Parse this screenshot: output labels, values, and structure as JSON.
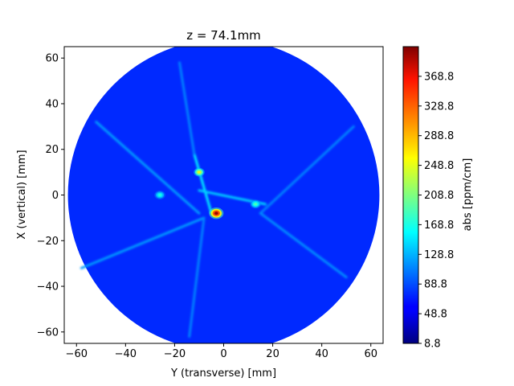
{
  "chart_data": {
    "type": "heatmap",
    "title": "z = 74.1mm",
    "xlabel": "Y (transverse) [mm]",
    "ylabel": "X (vertical) [mm]",
    "xlim": [
      -65,
      65
    ],
    "ylim": [
      -65,
      65
    ],
    "x_ticks": [
      -60,
      -40,
      -20,
      0,
      20,
      40,
      60
    ],
    "y_ticks": [
      -60,
      -40,
      -20,
      0,
      20,
      40,
      60
    ],
    "colormap": "jet",
    "colorbar": {
      "label": "abs [ppm/cm]",
      "range": [
        8.8,
        408.8
      ],
      "ticks": [
        "8.8",
        "48.8",
        "88.8",
        "128.8",
        "168.8",
        "208.8",
        "248.8",
        "288.8",
        "328.8",
        "368.8"
      ]
    },
    "disk_radius_mm": 63.5,
    "background_value": 75,
    "ridges": [
      {
        "from": [
          -52,
          32
        ],
        "to": [
          -10,
          -8
        ],
        "value": 120
      },
      {
        "from": [
          -5,
          -8
        ],
        "to": [
          -12,
          18
        ],
        "value": 150
      },
      {
        "from": [
          -12,
          18
        ],
        "to": [
          -18,
          58
        ],
        "value": 110
      },
      {
        "from": [
          -8,
          -10
        ],
        "to": [
          -58,
          -32
        ],
        "value": 120
      },
      {
        "from": [
          -8,
          -10
        ],
        "to": [
          -14,
          -62
        ],
        "value": 110
      },
      {
        "from": [
          15,
          -8
        ],
        "to": [
          53,
          30
        ],
        "value": 110
      },
      {
        "from": [
          15,
          -8
        ],
        "to": [
          50,
          -36
        ],
        "value": 115
      },
      {
        "from": [
          -10,
          2
        ],
        "to": [
          17,
          -4
        ],
        "value": 140
      }
    ],
    "hotspots": [
      {
        "x": -3,
        "y": -8,
        "value": 400,
        "note": "peak"
      },
      {
        "x": -10,
        "y": 10,
        "value": 260
      },
      {
        "x": 13,
        "y": -4,
        "value": 190
      },
      {
        "x": -26,
        "y": 0,
        "value": 170
      }
    ]
  }
}
